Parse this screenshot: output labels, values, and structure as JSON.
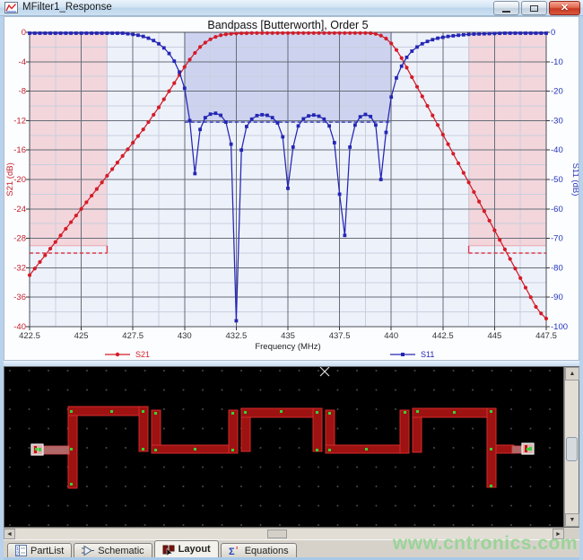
{
  "window": {
    "title": "MFilter1_Response",
    "icons": {
      "app-icon": "line-chart",
      "minimize-icon": "minimize-bar",
      "maximize-icon": "maximize-box",
      "close-icon": "✕"
    }
  },
  "chart_data": {
    "type": "line",
    "title": "Bandpass [Butterworth], Order 5",
    "xlabel": "Frequency (MHz)",
    "x_range": [
      422.5,
      447.5
    ],
    "x_major_step": 2.5,
    "x_minor_step": 1.25,
    "x_ticks": [
      "422.5",
      "425",
      "427.5",
      "430",
      "432.5",
      "435",
      "437.5",
      "440",
      "442.5",
      "445",
      "447.5"
    ],
    "grid": true,
    "legend_position": "bottom",
    "axes": {
      "left": {
        "label": "S21 (dB)",
        "color": "#c3202c",
        "range": [
          -40,
          0
        ],
        "major_step": 4,
        "minor_step": 2,
        "ticks": [
          "0",
          "-4",
          "-8",
          "-12",
          "-16",
          "-20",
          "-24",
          "-28",
          "-32",
          "-36",
          "-40"
        ]
      },
      "right": {
        "label": "S11 (dB)",
        "color": "#2334bb",
        "range": [
          -100,
          0
        ],
        "major_step": 10,
        "ticks": [
          "0",
          "-10",
          "-20",
          "-30",
          "-40",
          "-50",
          "-60",
          "-70",
          "-80",
          "-90",
          "-100"
        ]
      }
    },
    "spec_regions": [
      {
        "name": "lower-stopband-spec",
        "x": [
          422.5,
          426.25
        ],
        "y_s21": [
          0,
          -29
        ],
        "limit_s21": -30,
        "edge": "right",
        "fill": "#f2d6dc",
        "line": "#df3a4a"
      },
      {
        "name": "passband-spec",
        "x": [
          430.0,
          440.0
        ],
        "y_s21": [
          0,
          -12.2
        ],
        "limit_s21": -12.2,
        "edge": null,
        "fill": "#cdd3ef",
        "line": "#2a32aa"
      },
      {
        "name": "upper-stopband-spec",
        "x": [
          443.75,
          447.5
        ],
        "y_s21": [
          0,
          -29
        ],
        "limit_s21": -30,
        "edge": "left",
        "fill": "#f2d6dc",
        "line": "#df3a4a"
      }
    ],
    "legend": [
      {
        "label": "S21",
        "color": "#d41c28",
        "marker": "circle"
      },
      {
        "label": "S11",
        "color": "#2426b4",
        "marker": "square"
      }
    ],
    "series": [
      {
        "name": "S21",
        "axis": "left",
        "color": "#d41c28",
        "marker": "circle",
        "points": [
          [
            422.5,
            -33
          ],
          [
            422.75,
            -32.1
          ],
          [
            423,
            -31.2
          ],
          [
            423.25,
            -30.3
          ],
          [
            423.5,
            -29.4
          ],
          [
            423.75,
            -28.5
          ],
          [
            424,
            -27.6
          ],
          [
            424.25,
            -26.7
          ],
          [
            424.5,
            -25.8
          ],
          [
            424.75,
            -24.9
          ],
          [
            425,
            -24
          ],
          [
            425.25,
            -23.1
          ],
          [
            425.5,
            -22.2
          ],
          [
            425.75,
            -21.3
          ],
          [
            426,
            -20.4
          ],
          [
            426.25,
            -19.5
          ],
          [
            426.5,
            -18.6
          ],
          [
            426.75,
            -17.7
          ],
          [
            427,
            -16.8
          ],
          [
            427.25,
            -15.9
          ],
          [
            427.5,
            -15
          ],
          [
            427.75,
            -14.1
          ],
          [
            428,
            -13.2
          ],
          [
            428.25,
            -12.2
          ],
          [
            428.5,
            -11.2
          ],
          [
            428.75,
            -10.2
          ],
          [
            429,
            -9.1
          ],
          [
            429.25,
            -8
          ],
          [
            429.5,
            -6.9
          ],
          [
            429.75,
            -5.8
          ],
          [
            430,
            -4.7
          ],
          [
            430.25,
            -3.7
          ],
          [
            430.5,
            -2.8
          ],
          [
            430.75,
            -2
          ],
          [
            431,
            -1.4
          ],
          [
            431.25,
            -0.95
          ],
          [
            431.5,
            -0.62
          ],
          [
            431.75,
            -0.4
          ],
          [
            432,
            -0.27
          ],
          [
            432.25,
            -0.2
          ],
          [
            432.5,
            -0.16
          ],
          [
            432.75,
            -0.13
          ],
          [
            433,
            -0.12
          ],
          [
            433.25,
            -0.1
          ],
          [
            433.5,
            -0.1
          ],
          [
            433.75,
            -0.1
          ],
          [
            434,
            -0.1
          ],
          [
            434.25,
            -0.1
          ],
          [
            434.5,
            -0.1
          ],
          [
            434.75,
            -0.1
          ],
          [
            435,
            -0.1
          ],
          [
            435.25,
            -0.1
          ],
          [
            435.5,
            -0.1
          ],
          [
            435.75,
            -0.1
          ],
          [
            436,
            -0.1
          ],
          [
            436.25,
            -0.1
          ],
          [
            436.5,
            -0.1
          ],
          [
            436.75,
            -0.1
          ],
          [
            437,
            -0.1
          ],
          [
            437.25,
            -0.1
          ],
          [
            437.5,
            -0.1
          ],
          [
            437.75,
            -0.1
          ],
          [
            438,
            -0.1
          ],
          [
            438.25,
            -0.1
          ],
          [
            438.5,
            -0.1
          ],
          [
            438.75,
            -0.1
          ],
          [
            439,
            -0.12
          ],
          [
            439.25,
            -0.22
          ],
          [
            439.5,
            -0.45
          ],
          [
            439.75,
            -0.85
          ],
          [
            440,
            -1.5
          ],
          [
            440.25,
            -2.4
          ],
          [
            440.5,
            -3.5
          ],
          [
            440.75,
            -4.8
          ],
          [
            441,
            -6.1
          ],
          [
            441.25,
            -7.4
          ],
          [
            441.5,
            -8.7
          ],
          [
            441.75,
            -10
          ],
          [
            442,
            -11.3
          ],
          [
            442.25,
            -12.6
          ],
          [
            442.5,
            -13.9
          ],
          [
            442.75,
            -15.2
          ],
          [
            443,
            -16.5
          ],
          [
            443.25,
            -17.8
          ],
          [
            443.5,
            -19.1
          ],
          [
            443.75,
            -20.4
          ],
          [
            444,
            -21.7
          ],
          [
            444.25,
            -23
          ],
          [
            444.5,
            -24.3
          ],
          [
            444.75,
            -25.6
          ],
          [
            445,
            -26.9
          ],
          [
            445.25,
            -28.2
          ],
          [
            445.5,
            -29.5
          ],
          [
            445.75,
            -30.8
          ],
          [
            446,
            -32.1
          ],
          [
            446.25,
            -33.4
          ],
          [
            446.5,
            -34.7
          ],
          [
            446.75,
            -36
          ],
          [
            447,
            -37.3
          ],
          [
            447.25,
            -38.2
          ],
          [
            447.5,
            -38.9
          ]
        ]
      },
      {
        "name": "S11",
        "axis": "right",
        "color": "#2426b4",
        "marker": "square",
        "points": [
          [
            422.5,
            -0.3
          ],
          [
            422.75,
            -0.3
          ],
          [
            423,
            -0.3
          ],
          [
            423.25,
            -0.3
          ],
          [
            423.5,
            -0.3
          ],
          [
            423.75,
            -0.3
          ],
          [
            424,
            -0.3
          ],
          [
            424.25,
            -0.3
          ],
          [
            424.5,
            -0.3
          ],
          [
            424.75,
            -0.3
          ],
          [
            425,
            -0.3
          ],
          [
            425.25,
            -0.3
          ],
          [
            425.5,
            -0.3
          ],
          [
            425.75,
            -0.3
          ],
          [
            426,
            -0.3
          ],
          [
            426.25,
            -0.3
          ],
          [
            426.5,
            -0.3
          ],
          [
            426.75,
            -0.3
          ],
          [
            427,
            -0.3
          ],
          [
            427.25,
            -0.5
          ],
          [
            427.5,
            -0.7
          ],
          [
            427.75,
            -1
          ],
          [
            428,
            -1.4
          ],
          [
            428.25,
            -2
          ],
          [
            428.5,
            -2.8
          ],
          [
            428.75,
            -3.9
          ],
          [
            429,
            -5.3
          ],
          [
            429.25,
            -7.2
          ],
          [
            429.5,
            -9.8
          ],
          [
            429.75,
            -13.5
          ],
          [
            430,
            -19
          ],
          [
            430.25,
            -30
          ],
          [
            430.5,
            -48
          ],
          [
            430.75,
            -33
          ],
          [
            431,
            -29
          ],
          [
            431.25,
            -27.8
          ],
          [
            431.5,
            -27.5
          ],
          [
            431.75,
            -28.2
          ],
          [
            432,
            -30.5
          ],
          [
            432.25,
            -38
          ],
          [
            432.5,
            -98
          ],
          [
            432.75,
            -40
          ],
          [
            433,
            -32
          ],
          [
            433.25,
            -29.5
          ],
          [
            433.5,
            -28.3
          ],
          [
            433.75,
            -28
          ],
          [
            434,
            -28.2
          ],
          [
            434.25,
            -29
          ],
          [
            434.5,
            -30.8
          ],
          [
            434.75,
            -35.5
          ],
          [
            435,
            -53
          ],
          [
            435.25,
            -39
          ],
          [
            435.5,
            -31.8
          ],
          [
            435.75,
            -29.4
          ],
          [
            436,
            -28.4
          ],
          [
            436.25,
            -28.1
          ],
          [
            436.5,
            -28.5
          ],
          [
            436.75,
            -29.5
          ],
          [
            437,
            -31.8
          ],
          [
            437.25,
            -37.5
          ],
          [
            437.5,
            -55
          ],
          [
            437.75,
            -69
          ],
          [
            438,
            -39
          ],
          [
            438.25,
            -31.5
          ],
          [
            438.5,
            -28.7
          ],
          [
            438.75,
            -27.9
          ],
          [
            439,
            -28.6
          ],
          [
            439.25,
            -31.5
          ],
          [
            439.5,
            -50
          ],
          [
            439.75,
            -34
          ],
          [
            440,
            -22
          ],
          [
            440.25,
            -15.5
          ],
          [
            440.5,
            -11.5
          ],
          [
            440.75,
            -8.5
          ],
          [
            441,
            -6.4
          ],
          [
            441.25,
            -5
          ],
          [
            441.5,
            -3.9
          ],
          [
            441.75,
            -3.1
          ],
          [
            442,
            -2.5
          ],
          [
            442.25,
            -2
          ],
          [
            442.5,
            -1.7
          ],
          [
            442.75,
            -1.4
          ],
          [
            443,
            -1.2
          ],
          [
            443.25,
            -1
          ],
          [
            443.5,
            -0.85
          ],
          [
            443.75,
            -0.7
          ],
          [
            444,
            -0.6
          ],
          [
            444.25,
            -0.55
          ],
          [
            444.5,
            -0.5
          ],
          [
            444.75,
            -0.45
          ],
          [
            445,
            -0.4
          ],
          [
            445.25,
            -0.35
          ],
          [
            445.5,
            -0.3
          ],
          [
            445.75,
            -0.3
          ],
          [
            446,
            -0.3
          ],
          [
            446.25,
            -0.3
          ],
          [
            446.5,
            -0.3
          ],
          [
            446.75,
            -0.3
          ],
          [
            447,
            -0.3
          ],
          [
            447.25,
            -0.3
          ],
          [
            447.5,
            -0.3
          ]
        ]
      }
    ]
  },
  "layout_panel": {
    "background": "#000000",
    "trace_fill": "#9e1212",
    "trace_stroke": "#d42a2a",
    "selected_trace_fill": "#b06868",
    "junction_color": "#35d435",
    "grid_dot_color": "#4a4a4a"
  },
  "tabs": [
    {
      "label": "PartList",
      "icon": "partlist-icon",
      "active": false
    },
    {
      "label": "Schematic",
      "icon": "schematic-icon",
      "active": false
    },
    {
      "label": "Layout",
      "icon": "layout-icon",
      "active": true
    },
    {
      "label": "Equations",
      "icon": "equations-icon",
      "active": false
    }
  ],
  "watermark": {
    "text": "www.cntronics.com",
    "color": "#8ed38e"
  }
}
